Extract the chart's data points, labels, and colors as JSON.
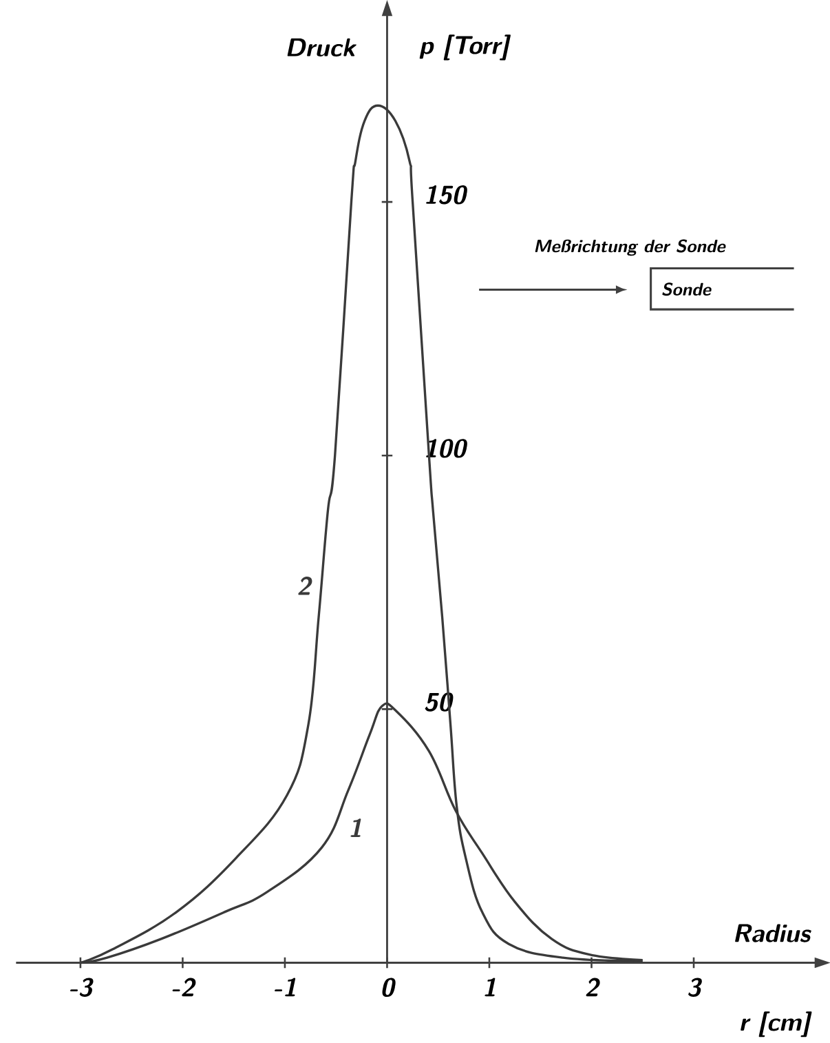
{
  "chart_data": {
    "type": "line",
    "xlabel": "r [cm]",
    "ylabel": "p [Torr]",
    "annotations": [
      "Radius",
      "Druck",
      "Meßrichtung der Sonde",
      "Sonde"
    ],
    "xlim": [
      -3.63,
      4.2
    ],
    "ylim": [
      0,
      187
    ],
    "xticks": [
      -3,
      -2,
      -1,
      0,
      1,
      2,
      3
    ],
    "yticks": [
      50,
      100,
      150
    ],
    "series": [
      {
        "name": "2",
        "color": "#3a3a3a",
        "x": [
          -3.0,
          -2.69,
          -2.06,
          -1.48,
          -0.98,
          -0.77,
          -0.67,
          -0.58,
          -0.51,
          -0.35,
          -0.31,
          -0.22,
          -0.09,
          0.08,
          0.22,
          0.25,
          0.41,
          0.45,
          0.54,
          0.62,
          0.68,
          0.77,
          0.93,
          1.19,
          1.72,
          2.5
        ],
        "values": [
          0,
          2.6,
          10,
          20.6,
          33,
          47,
          68,
          89,
          100,
          150,
          158,
          166,
          169,
          166,
          158,
          150,
          100,
          89,
          68,
          47,
          31,
          20.6,
          10,
          3.7,
          1,
          0.3
        ]
      },
      {
        "name": "1",
        "color": "#3a3a3a",
        "x": [
          -3.0,
          -2.74,
          -2.21,
          -1.59,
          -1.17,
          -0.64,
          -0.38,
          -0.17,
          -0.05,
          0.09,
          0.41,
          0.67,
          0.93,
          1.25,
          1.61,
          1.98,
          2.5
        ],
        "values": [
          0,
          1,
          4.7,
          10,
          14,
          22.7,
          34,
          45,
          50.6,
          49.6,
          41.7,
          30,
          21.6,
          12,
          4.7,
          1.6,
          0.5
        ]
      }
    ]
  }
}
